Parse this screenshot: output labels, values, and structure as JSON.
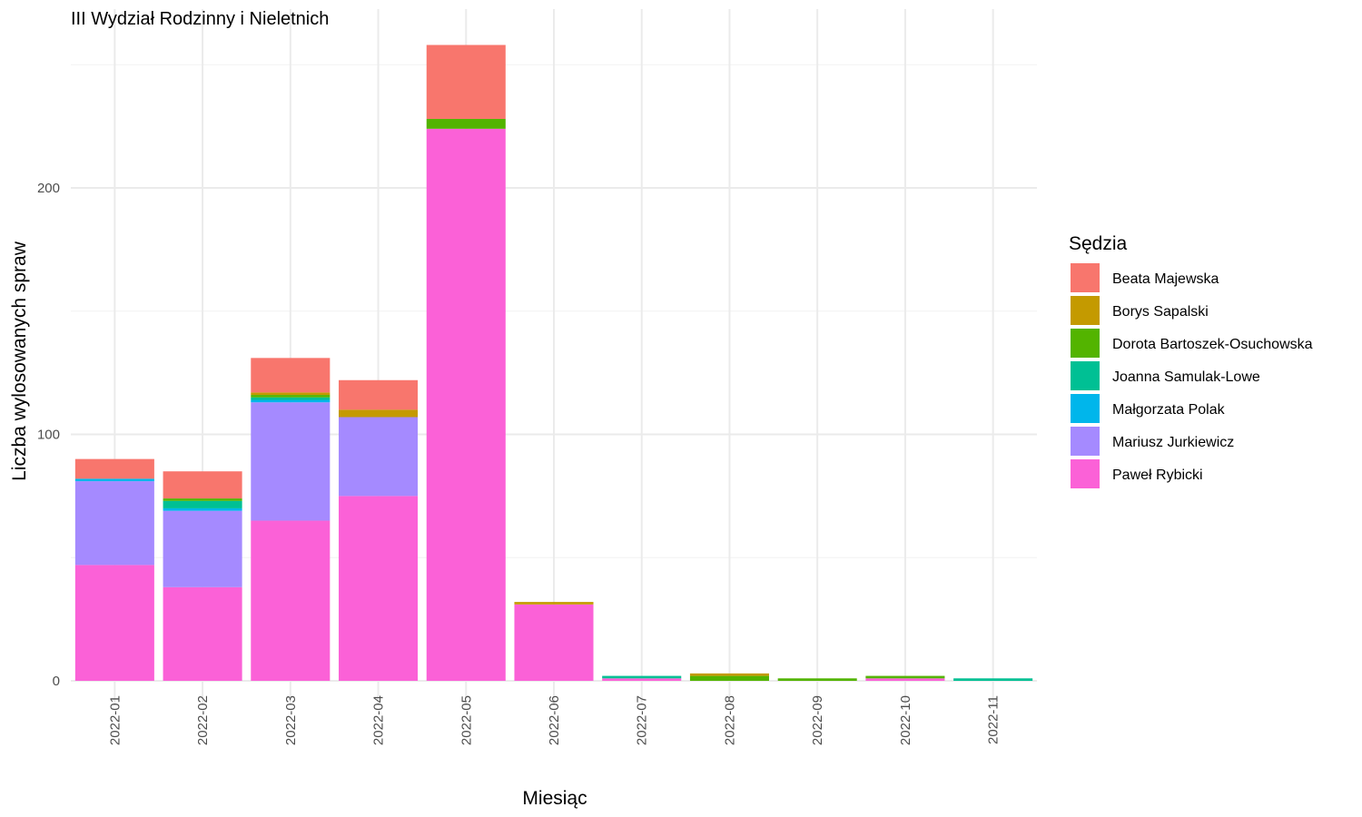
{
  "chart_data": {
    "type": "bar",
    "stacked": true,
    "title": "III Wydział Rodzinny i Nieletnich",
    "xlabel": "Miesiąc",
    "ylabel": "Liczba wylosowanych spraw",
    "legend_title": "Sędzia",
    "legend_position": "right",
    "grid": true,
    "ylim": [
      0,
      260
    ],
    "yticks": [
      0,
      100,
      200
    ],
    "categories": [
      "2022-01",
      "2022-02",
      "2022-03",
      "2022-04",
      "2022-05",
      "2022-06",
      "2022-07",
      "2022-08",
      "2022-09",
      "2022-10",
      "2022-11"
    ],
    "stack_order_bottom_to_top": [
      "Paweł Rybicki",
      "Mariusz Jurkiewicz",
      "Małgorzata Polak",
      "Joanna Samulak-Lowe",
      "Dorota Bartoszek-Osuchowska",
      "Borys Sapalski",
      "Beata Majewska"
    ],
    "series": [
      {
        "name": "Beata Majewska",
        "color": "#F8766D",
        "values": [
          8,
          11,
          14,
          12,
          30,
          0,
          0,
          0,
          0,
          0,
          0
        ]
      },
      {
        "name": "Borys Sapalski",
        "color": "#C49A00",
        "values": [
          0,
          0,
          1,
          3,
          0,
          1,
          0,
          1,
          0,
          0,
          0
        ]
      },
      {
        "name": "Dorota Bartoszek-Osuchowska",
        "color": "#53B400",
        "values": [
          0,
          1,
          1,
          0,
          4,
          0,
          0,
          2,
          1,
          1,
          0
        ]
      },
      {
        "name": "Joanna Samulak-Lowe",
        "color": "#00C094",
        "values": [
          0,
          3,
          1,
          0,
          0,
          0,
          1,
          0,
          0,
          0,
          1
        ]
      },
      {
        "name": "Małgorzata Polak",
        "color": "#00B6EB",
        "values": [
          1,
          1,
          1,
          0,
          0,
          0,
          0,
          0,
          0,
          0,
          0
        ]
      },
      {
        "name": "Mariusz Jurkiewicz",
        "color": "#A58AFF",
        "values": [
          34,
          31,
          48,
          32,
          0,
          0,
          0,
          0,
          0,
          0,
          0
        ]
      },
      {
        "name": "Paweł Rybicki",
        "color": "#FB61D7",
        "values": [
          47,
          38,
          65,
          75,
          224,
          31,
          1,
          0,
          0,
          1,
          0
        ]
      }
    ]
  }
}
